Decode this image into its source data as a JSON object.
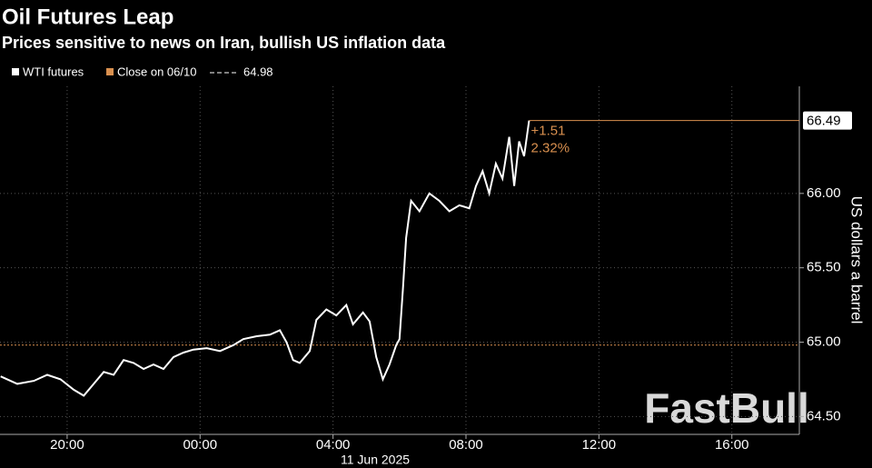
{
  "chart_data": {
    "type": "line",
    "title": "Oil Futures Leap",
    "subtitle": "Prices sensitive to news on Iran, bullish US inflation data",
    "y_label": "US dollars a barrel",
    "x_date_label": "11 Jun 2025",
    "watermark": "FastBull",
    "x": [
      -6.0,
      -5.5,
      -5.0,
      -4.6,
      -4.2,
      -3.8,
      -3.5,
      -3.2,
      -2.9,
      -2.6,
      -2.3,
      -2.0,
      -1.7,
      -1.4,
      -1.1,
      -0.8,
      -0.5,
      -0.2,
      0.2,
      0.6,
      1.0,
      1.3,
      1.7,
      2.1,
      2.4,
      2.6,
      2.8,
      3.0,
      3.3,
      3.5,
      3.8,
      4.1,
      4.4,
      4.6,
      4.9,
      5.1,
      5.3,
      5.5,
      5.7,
      5.9,
      6.0,
      6.1,
      6.2,
      6.35,
      6.6,
      6.9,
      7.2,
      7.5,
      7.8,
      8.1,
      8.3,
      8.5,
      8.7,
      8.9,
      9.1,
      9.3,
      9.45,
      9.6,
      9.75,
      9.9
    ],
    "series": [
      {
        "name": "WTI futures",
        "color": "#ffffff",
        "values": [
          64.77,
          64.72,
          64.74,
          64.78,
          64.75,
          64.68,
          64.64,
          64.72,
          64.8,
          64.78,
          64.88,
          64.86,
          64.82,
          64.85,
          64.82,
          64.9,
          64.93,
          64.95,
          64.96,
          64.94,
          64.98,
          65.02,
          65.04,
          65.05,
          65.08,
          65.0,
          64.88,
          64.86,
          64.94,
          65.15,
          65.22,
          65.18,
          65.25,
          65.12,
          65.2,
          65.14,
          64.9,
          64.75,
          64.85,
          64.98,
          65.02,
          65.35,
          65.7,
          65.95,
          65.88,
          66.0,
          65.95,
          65.88,
          65.92,
          65.9,
          66.05,
          66.15,
          66.0,
          66.2,
          66.1,
          66.38,
          66.05,
          66.35,
          66.25,
          66.49
        ]
      }
    ],
    "reference_line": {
      "name": "Close on 06/10",
      "value": 64.98,
      "color": "#d9904f"
    },
    "annotations": [
      "+1.51",
      "2.32%"
    ],
    "xlim": [
      -6.02,
      18.03
    ],
    "xticks": [
      {
        "value": -4,
        "label": "20:00"
      },
      {
        "value": 0,
        "label": "00:00"
      },
      {
        "value": 4,
        "label": "04:00"
      },
      {
        "value": 8,
        "label": "08:00"
      },
      {
        "value": 12,
        "label": "12:00"
      },
      {
        "value": 16,
        "label": "16:00"
      }
    ],
    "ylim": [
      64.38,
      66.72
    ],
    "yticks": [
      {
        "value": 64.5,
        "label": "64.50"
      },
      {
        "value": 65,
        "label": "65.00"
      },
      {
        "value": 65.5,
        "label": "65.50"
      },
      {
        "value": 66,
        "label": "66.00"
      }
    ],
    "grid": true
  }
}
